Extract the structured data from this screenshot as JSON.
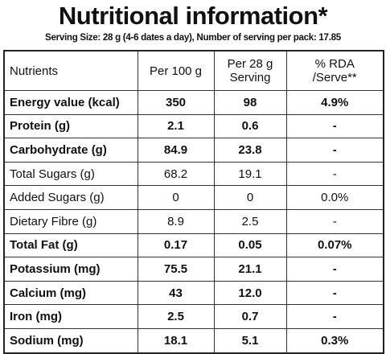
{
  "header": {
    "title": "Nutritional information*",
    "subtitle": "Serving Size: 28 g (4-6 dates a day), Number of serving per pack: 17.85"
  },
  "table": {
    "columns": [
      "Nutrients",
      "Per 100 g",
      "Per 28 g\nServing",
      "% RDA /Serve**"
    ],
    "rows": [
      {
        "bold": true,
        "cells": [
          "Energy value (kcal)",
          "350",
          "98",
          "4.9%"
        ]
      },
      {
        "bold": true,
        "cells": [
          "Protein (g)",
          "2.1",
          "0.6",
          "-"
        ]
      },
      {
        "bold": true,
        "cells": [
          "Carbohydrate (g)",
          "84.9",
          "23.8",
          "-"
        ]
      },
      {
        "bold": false,
        "cells": [
          "Total Sugars (g)",
          "68.2",
          "19.1",
          "-"
        ]
      },
      {
        "bold": false,
        "cells": [
          "Added Sugars (g)",
          "0",
          "0",
          "0.0%"
        ]
      },
      {
        "bold": false,
        "cells": [
          "Dietary Fibre (g)",
          "8.9",
          "2.5",
          "-"
        ]
      },
      {
        "bold": true,
        "cells": [
          "Total Fat (g)",
          "0.17",
          "0.05",
          "0.07%"
        ]
      },
      {
        "bold": true,
        "cells": [
          "Potassium (mg)",
          "75.5",
          "21.1",
          "-"
        ]
      },
      {
        "bold": true,
        "cells": [
          "Calcium (mg)",
          "43",
          "12.0",
          "-"
        ]
      },
      {
        "bold": true,
        "cells": [
          "Iron (mg)",
          "2.5",
          "0.7",
          "-"
        ]
      },
      {
        "bold": true,
        "cells": [
          "Sodium (mg)",
          "18.1",
          "5.1",
          "0.3%"
        ]
      }
    ]
  }
}
